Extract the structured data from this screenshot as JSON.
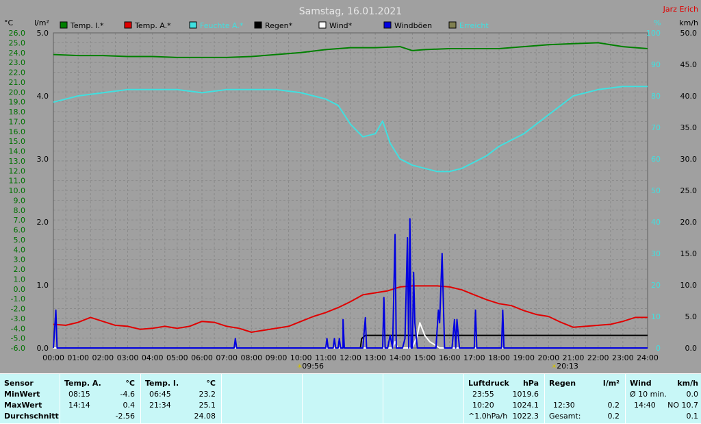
{
  "header": {
    "title": "Samstag, 16.01.2021",
    "station": "Jarz Erich",
    "left_unit_temp": "°C",
    "left_unit_rain": "l/m²",
    "right_unit_humidity": "%",
    "right_unit_wind": "km/h"
  },
  "legend": [
    {
      "label": "Temp. I.*",
      "color": "#008000"
    },
    {
      "label": "Temp. A.*",
      "color": "#e00000"
    },
    {
      "label": "Feuchte A.*",
      "color": "#40e0e0"
    },
    {
      "label": "Regen*",
      "color": "#000000"
    },
    {
      "label": "Wind*",
      "color": "#ffffff"
    },
    {
      "label": "Windböen",
      "color": "#0000e0"
    },
    {
      "label": "Erreicht",
      "color": "#808050"
    }
  ],
  "chart_data": {
    "type": "line",
    "title": "Samstag, 16.01.2021",
    "x_ticks": [
      "00:00",
      "01:00",
      "02:00",
      "03:00",
      "04:00",
      "05:00",
      "06:00",
      "07:00",
      "08:00",
      "09:00",
      "10:00",
      "11:00",
      "12:00",
      "13:00",
      "14:00",
      "15:00",
      "16:00",
      "17:00",
      "18:00",
      "19:00",
      "20:00",
      "21:00",
      "22:00",
      "23:00",
      "24:00"
    ],
    "xlim": [
      0,
      24
    ],
    "y_temp_ticks": [
      "26.0",
      "25.0",
      "24.0",
      "23.0",
      "22.0",
      "21.0",
      "20.0",
      "19.0",
      "18.0",
      "17.0",
      "16.0",
      "15.0",
      "14.0",
      "13.0",
      "12.0",
      "11.0",
      "10.0",
      "9.0",
      "8.0",
      "7.0",
      "6.0",
      "5.0",
      "4.0",
      "3.0",
      "2.0",
      "1.0",
      "0.0",
      "-1.0",
      "-2.0",
      "-3.0",
      "-4.0",
      "-5.0",
      "-6.0"
    ],
    "y_temp_range": [
      -6,
      26
    ],
    "y_rain_ticks": [
      "5.0",
      "4.0",
      "3.0",
      "2.0",
      "1.0",
      "0.0"
    ],
    "y_rain_range": [
      0,
      5
    ],
    "y_hum_ticks": [
      "100",
      "90",
      "80",
      "70",
      "60",
      "50",
      "40",
      "30",
      "20",
      "10",
      "0"
    ],
    "y_hum_range": [
      0,
      100
    ],
    "y_wind_ticks": [
      "50.0",
      "45.0",
      "40.0",
      "35.0",
      "30.0",
      "25.0",
      "20.0",
      "15.0",
      "10.0",
      "5.0",
      "0.0"
    ],
    "y_wind_range": [
      0,
      50
    ],
    "sunrise": "09:56",
    "sunset": "20:13",
    "series": [
      {
        "name": "Temp. I.*",
        "axis": "temp",
        "color": "#008000",
        "x": [
          0,
          1,
          2,
          3,
          4,
          5,
          6,
          7,
          8,
          9,
          10,
          11,
          12,
          13,
          14,
          14.5,
          15,
          16,
          17,
          18,
          19,
          20,
          21,
          22,
          23,
          24
        ],
        "y": [
          23.8,
          23.7,
          23.7,
          23.6,
          23.6,
          23.5,
          23.5,
          23.5,
          23.6,
          23.8,
          24.0,
          24.3,
          24.5,
          24.5,
          24.6,
          24.2,
          24.3,
          24.4,
          24.4,
          24.4,
          24.6,
          24.8,
          24.9,
          25.0,
          24.6,
          24.4
        ]
      },
      {
        "name": "Temp. A.*",
        "axis": "temp",
        "color": "#e00000",
        "x": [
          0,
          0.5,
          1,
          1.5,
          2,
          2.5,
          3,
          3.5,
          4,
          4.5,
          5,
          5.5,
          6,
          6.5,
          7,
          7.5,
          8,
          8.5,
          9,
          9.5,
          10,
          10.5,
          11,
          11.5,
          12,
          12.5,
          13,
          13.5,
          14,
          14.5,
          15,
          15.5,
          16,
          16.5,
          17,
          17.5,
          18,
          18.5,
          19,
          19.5,
          20,
          20.5,
          21,
          21.5,
          22,
          22.5,
          23,
          23.5,
          24
        ],
        "y": [
          -3.6,
          -3.7,
          -3.4,
          -2.9,
          -3.3,
          -3.7,
          -3.8,
          -4.1,
          -4.0,
          -3.8,
          -4.0,
          -3.8,
          -3.3,
          -3.4,
          -3.8,
          -4.0,
          -4.4,
          -4.2,
          -4.0,
          -3.8,
          -3.3,
          -2.8,
          -2.4,
          -1.9,
          -1.3,
          -0.6,
          -0.4,
          -0.2,
          0.2,
          0.3,
          0.3,
          0.3,
          0.2,
          -0.1,
          -0.6,
          -1.1,
          -1.5,
          -1.7,
          -2.2,
          -2.6,
          -2.8,
          -3.4,
          -3.9,
          -3.8,
          -3.7,
          -3.6,
          -3.3,
          -2.9,
          -2.9
        ]
      },
      {
        "name": "Feuchte A.*",
        "axis": "hum",
        "color": "#40e0e0",
        "x": [
          0,
          1,
          2,
          3,
          4,
          5,
          6,
          7,
          8,
          9,
          10,
          11,
          11.5,
          12,
          12.5,
          13,
          13.3,
          13.6,
          14,
          14.5,
          15,
          15.5,
          16,
          16.5,
          17,
          17.5,
          18,
          19,
          20,
          21,
          22,
          23,
          24
        ],
        "y": [
          78,
          80,
          81,
          82,
          82,
          82,
          81,
          82,
          82,
          82,
          81,
          79,
          77,
          71,
          67,
          68,
          72,
          65,
          60,
          58,
          57,
          56,
          56,
          57,
          59,
          61,
          64,
          68,
          74,
          80,
          82,
          83,
          83
        ]
      },
      {
        "name": "Regen*",
        "axis": "rain",
        "color": "#000000",
        "x": [
          0,
          12.4,
          12.45,
          12.6,
          12.8,
          13,
          13.5,
          14,
          24
        ],
        "y": [
          0,
          0,
          0.15,
          0.2,
          0.2,
          0.2,
          0.2,
          0.2,
          0.2
        ]
      },
      {
        "name": "Wind*",
        "axis": "wind",
        "color": "#ffffff",
        "x": [
          0,
          13.7,
          13.8,
          13.9,
          14.5,
          14.6,
          14.7,
          14.8,
          14.9,
          15.0,
          15.2,
          15.4,
          15.6,
          24
        ],
        "y": [
          0,
          0,
          1,
          0,
          0,
          1,
          2,
          4,
          3,
          2,
          1,
          0.5,
          0,
          0
        ]
      },
      {
        "name": "Windböen",
        "axis": "wind",
        "color": "#0000e0",
        "x": [
          0,
          0.1,
          0.15,
          0.2,
          0.3,
          7.3,
          7.35,
          7.4,
          7.45,
          11.0,
          11.05,
          11.1,
          11.15,
          11.3,
          11.35,
          11.4,
          11.5,
          11.55,
          11.6,
          11.7,
          11.7,
          11.75,
          11.8,
          12.5,
          12.55,
          12.6,
          12.65,
          12.7,
          12.75,
          13.3,
          13.35,
          13.4,
          13.5,
          13.6,
          13.7,
          13.8,
          13.85,
          13.9,
          14.1,
          14.2,
          14.3,
          14.35,
          14.4,
          14.45,
          14.5,
          14.55,
          14.6,
          14.7,
          14.8,
          14.9,
          15.0,
          15.1,
          15.3,
          15.4,
          15.45,
          15.5,
          15.55,
          15.6,
          15.7,
          15.8,
          15.9,
          16.0,
          16.1,
          16.2,
          16.25,
          16.3,
          16.4,
          16.5,
          16.6,
          16.7,
          16.8,
          16.9,
          17.0,
          17.05,
          17.1,
          17.2,
          17.3,
          18.1,
          18.15,
          18.2,
          18.3,
          24
        ],
        "y": [
          0,
          6,
          0,
          0,
          0,
          0,
          1.5,
          0,
          0,
          0,
          1.5,
          0,
          0,
          0,
          1.5,
          0,
          0,
          1.5,
          0,
          0,
          4.5,
          0,
          0,
          0,
          2.5,
          4.8,
          0,
          0,
          0,
          0,
          8,
          0,
          0,
          2,
          0,
          18,
          0,
          0,
          0,
          1.5,
          17.5,
          0,
          20.5,
          0,
          0,
          12,
          4,
          0,
          0,
          0,
          0,
          0,
          0,
          0,
          0,
          3,
          6,
          4,
          15,
          0,
          0,
          0,
          0,
          4.5,
          0,
          4.5,
          0,
          0,
          0,
          0,
          0,
          0,
          0,
          6,
          0,
          0,
          0,
          0,
          6,
          0,
          0,
          0
        ]
      }
    ]
  },
  "stats": {
    "sensor": {
      "header": "Sensor",
      "rows": [
        "MinWert",
        "MaxWert",
        "Durchschnitt"
      ]
    },
    "temp_a": {
      "header": "Temp. A.",
      "unit": "°C",
      "min_time": "08:15",
      "min": "-4.6",
      "max_time": "14:14",
      "max": "0.4",
      "avg": "-2.56"
    },
    "temp_i": {
      "header": "Temp. I.",
      "unit": "°C",
      "min_time": "06:45",
      "min": "23.2",
      "max_time": "21:34",
      "max": "25.1",
      "avg": "24.08"
    },
    "pressure": {
      "header": "Luftdruck",
      "unit": "hPa",
      "min_time": "23:55",
      "min": "1019.6",
      "max_time": "10:20",
      "max": "1024.1",
      "trend_label": "^1.0hPa/h",
      "avg": "1022.3"
    },
    "rain": {
      "header": "Regen",
      "unit": "l/m²",
      "max_time": "12:30",
      "max": "0.2",
      "total_label": "Gesamt:",
      "total": "0.2"
    },
    "wind": {
      "header": "Wind",
      "unit": "km/h",
      "avg_label": "Ø 10 min.",
      "avg10": "0.0",
      "max_time": "14:40",
      "max": "NO 10.7",
      "avg": "0.1"
    }
  }
}
